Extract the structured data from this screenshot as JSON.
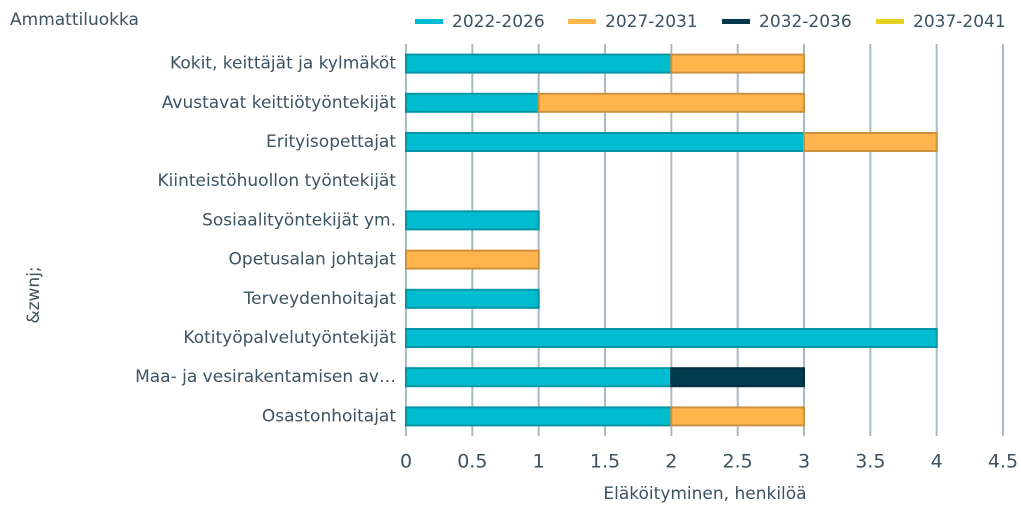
{
  "chart_data": {
    "type": "bar",
    "orientation": "horizontal",
    "stacked": true,
    "legend_title": "Ammattiluokka",
    "ylabel": "&zwnj;",
    "xlabel": "Eläköityminen, henkilöä",
    "categories": [
      "Kokit, keittäjät ja kylmäköt",
      "Avustavat keittiötyöntekijät",
      "Erityisopettajat",
      "Kiinteistöhuollon työntekijät",
      "Sosiaalityöntekijät ym.",
      "Opetusalan johtajat",
      "Terveydenhoitajat",
      "Kotityöpalvelutyöntekijät",
      "Maa- ja vesirakentamisen av…",
      "Osastonhoitajat"
    ],
    "series": [
      {
        "name": "2022-2026",
        "color": "#00bcd0",
        "values": [
          2,
          1,
          3,
          0,
          1,
          0,
          1,
          4,
          2,
          2
        ]
      },
      {
        "name": "2027-2031",
        "color": "#ffb54c",
        "values": [
          1,
          2,
          1,
          0,
          0,
          1,
          0,
          0,
          0,
          1
        ]
      },
      {
        "name": "2032-2036",
        "color": "#003a4c",
        "values": [
          0,
          0,
          0,
          0,
          0,
          0,
          0,
          0,
          1,
          0
        ]
      },
      {
        "name": "2037-2041",
        "color": "#e6d21e",
        "values": [
          0,
          0,
          0,
          0,
          0,
          0,
          0,
          0,
          0,
          0
        ]
      }
    ],
    "xlim": [
      0,
      4.5
    ],
    "xticks": [
      0,
      0.5,
      1,
      1.5,
      2,
      2.5,
      3,
      3.5,
      4,
      4.5
    ],
    "grid": true
  }
}
